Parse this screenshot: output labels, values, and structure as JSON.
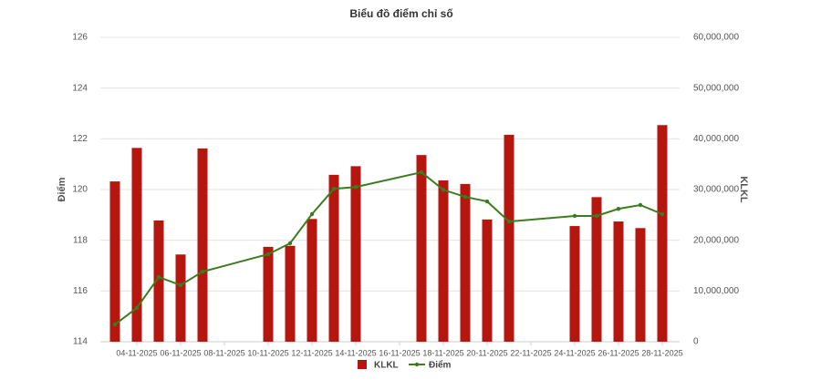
{
  "chart_data": {
    "type": "combo",
    "title": "Biểu đồ điểm chỉ số",
    "y_label": "Điểm",
    "y2_label": "KLKL",
    "x": [
      "03-11-2025",
      "04-11-2025",
      "05-11-2025",
      "06-11-2025",
      "07-11-2025",
      "10-11-2025",
      "11-11-2025",
      "12-11-2025",
      "13-11-2025",
      "14-11-2025",
      "17-11-2025",
      "18-11-2025",
      "19-11-2025",
      "20-11-2025",
      "21-11-2025",
      "24-11-2025",
      "25-11-2025",
      "26-11-2025",
      "27-11-2025",
      "28-11-2025"
    ],
    "xticks": [
      "04-11-2025",
      "06-11-2025",
      "08-11-2025",
      "10-11-2025",
      "12-11-2025",
      "14-11-2025",
      "16-11-2025",
      "18-11-2025",
      "20-11-2025",
      "22-11-2025",
      "24-11-2025",
      "26-11-2025",
      "28-11-2025"
    ],
    "series": [
      {
        "name": "KLKL",
        "type": "bar",
        "axis": "y2",
        "color": "#b5170f",
        "values": [
          31600000,
          38200000,
          23900000,
          17200000,
          38100000,
          18700000,
          18900000,
          24200000,
          32900000,
          34600000,
          36800000,
          31800000,
          31100000,
          24100000,
          40800000,
          22800000,
          28500000,
          23700000,
          22400000,
          42700000
        ]
      },
      {
        "name": "Điểm",
        "type": "line",
        "color": "#3a7d1e",
        "values": [
          114.68,
          115.33,
          116.55,
          116.23,
          116.76,
          117.45,
          117.88,
          119.03,
          120.03,
          120.1,
          120.68,
          119.99,
          119.71,
          119.53,
          118.74,
          118.96,
          118.96,
          119.24,
          119.39,
          119.03
        ]
      }
    ],
    "ylim": [
      114,
      126
    ],
    "yticks": [
      114,
      116,
      118,
      120,
      122,
      124,
      126
    ],
    "y2lim": [
      0,
      60000000
    ],
    "y2ticks": [
      0,
      {
        "value": 10000000,
        "label": "10,000,000"
      },
      {
        "value": 20000000,
        "label": "20,000,000"
      },
      {
        "value": 30000000,
        "label": "30,000,000"
      },
      {
        "value": 40000000,
        "label": "40,000,000"
      },
      {
        "value": 50000000,
        "label": "50,000,000"
      },
      {
        "value": 60000000,
        "label": "60,000,000"
      }
    ],
    "grid": true
  }
}
